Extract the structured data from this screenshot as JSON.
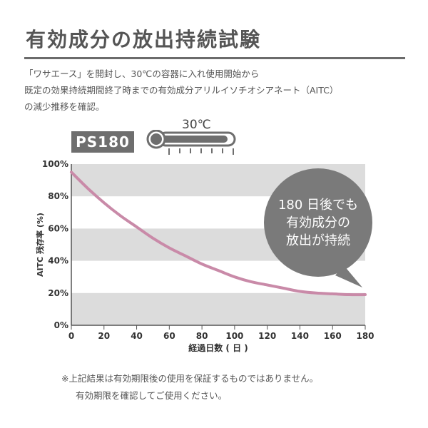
{
  "title": "有効成分の放出持続試験",
  "intro": [
    "「ワサエース」を開封し、30℃の容器に入れ使用開始から",
    "既定の効果持続期間終了時までの有効成分アリルイソチオシアネート（AITC）",
    "の減少推移を確認。"
  ],
  "product_tag": "PS180",
  "temperature": "30℃",
  "thermometer_icon": "thermometer-icon",
  "callout": [
    "180 日後でも",
    "有効成分の",
    "放出が持続"
  ],
  "colors": {
    "line": "#c98aa8",
    "band": "#dcdcdc",
    "tag_bg": "#6e6e6e",
    "callout_bg": "#7a7a7a",
    "rule": "#6b6b6b"
  },
  "chart_data": {
    "type": "line",
    "xlabel": "経過日数 ( 日 )",
    "ylabel": "AITC 残存率 (%)",
    "x_ticks": [
      "0",
      "20",
      "40",
      "60",
      "80",
      "100",
      "120",
      "140",
      "160",
      "180"
    ],
    "y_ticks": [
      "0%",
      "20%",
      "40%",
      "60%",
      "80%",
      "100%"
    ],
    "xlim": [
      0,
      180
    ],
    "ylim": [
      0,
      100
    ],
    "grid": "alternating horizontal bands",
    "series": [
      {
        "x": [
          0,
          10,
          20,
          30,
          40,
          50,
          60,
          70,
          80,
          90,
          100,
          110,
          120,
          130,
          140,
          150,
          160,
          170,
          180
        ],
        "values": [
          95,
          85,
          76,
          68,
          61,
          54,
          48,
          43,
          38,
          34,
          30,
          27,
          25,
          23,
          21,
          20,
          19.5,
          19,
          19
        ]
      }
    ]
  },
  "notes": [
    "※上記結果は有効期限後の使用を保証するものではありません。",
    "有効期限を確認してご使用ください。"
  ]
}
